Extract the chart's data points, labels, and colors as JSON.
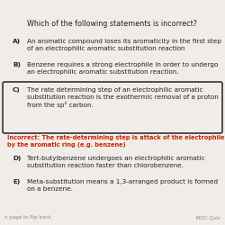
{
  "title": "Which of the following statements is incorrect?",
  "background_color": "#f0ede8",
  "options": [
    {
      "letter": "A)",
      "text": "An aromatic compound loses its aromaticity in the first step\nof an electrophilic aromatic substitution reaction"
    },
    {
      "letter": "B)",
      "text": "Benzene requires a strong electrophile in order to undergo\nan electrophilic aromatic substitution reaction."
    },
    {
      "letter": "C)",
      "text": "The rate determining step of an electrophilic aromatic\nsubstitution reaction is the exothermic removal of a proton\nfrom the sp² carbon.",
      "highlighted": true
    },
    {
      "letter": "D)",
      "text": "Tert-butylbenzene undergoes an electrophilic aromatic\nsubstitution reaction faster than chlorobenzene."
    },
    {
      "letter": "E)",
      "text": "Meta-substitution means a 1,3-arranged product is formed\non a benzene."
    }
  ],
  "incorrect_text": "Incorrect: The rate-determining step is attack of the electrophile\nby the aromatic ring (e.g. benzene)",
  "incorrect_color": "#cc2200",
  "footer_left": "n page to flip back",
  "footer_right": "MOC Quiz",
  "box_color": "#333333",
  "text_color": "#222222",
  "font_size": 5.2,
  "title_font_size": 5.8
}
